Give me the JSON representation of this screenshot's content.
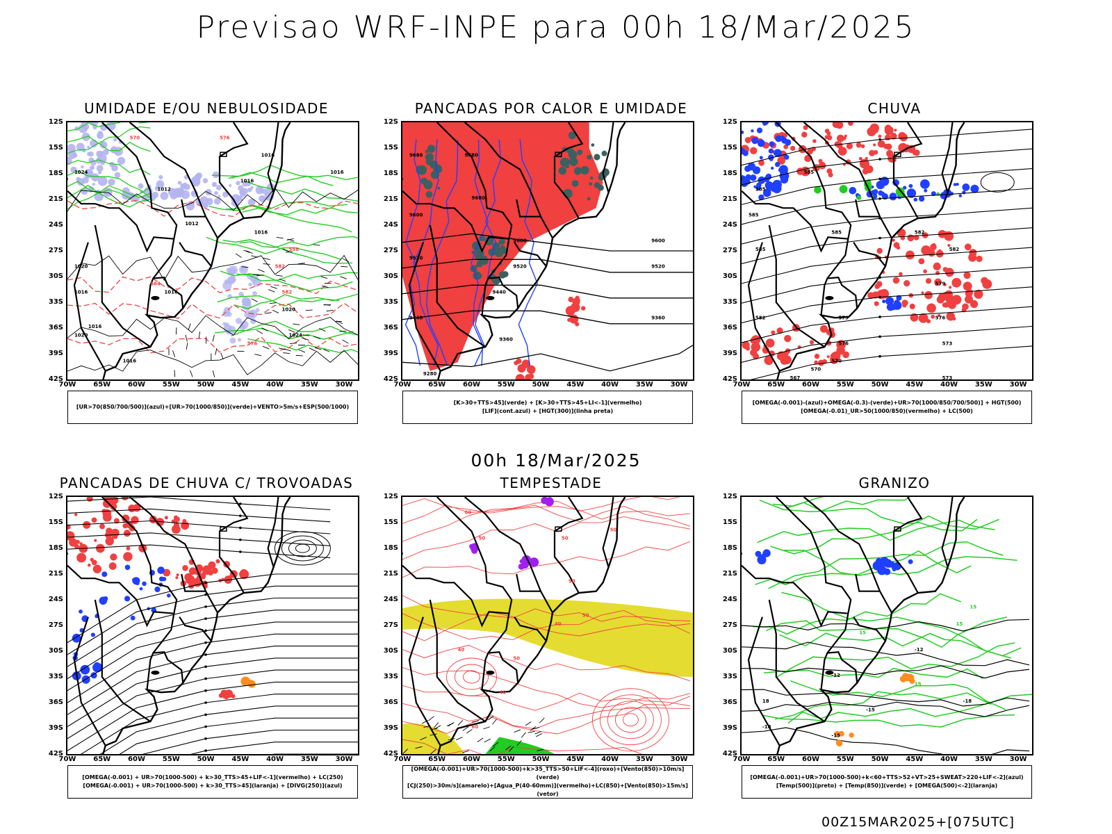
{
  "title": "Previsao WRF-INPE  para 00h 18/Mar/2025",
  "mid_title": "00h 18/Mar/2025",
  "footer": "00Z15MAR2025+[075UTC]",
  "axes": {
    "lat_labels": [
      "12S",
      "15S",
      "18S",
      "21S",
      "24S",
      "27S",
      "30S",
      "33S",
      "36S",
      "39S",
      "42S"
    ],
    "lon_labels": [
      "70W",
      "65W",
      "60W",
      "55W",
      "50W",
      "45W",
      "40W",
      "35W",
      "30W"
    ],
    "lat_range": [
      -12,
      -42
    ],
    "lon_range": [
      -70,
      -28
    ]
  },
  "colors": {
    "red": "#f04040",
    "green": "#22cc22",
    "blue": "#2040ff",
    "lavender": "#b4b4f0",
    "darkteal": "#3c6060",
    "yellow": "#e4dc30",
    "purple": "#a020f0",
    "orange": "#ff8c20"
  },
  "panels": [
    {
      "title": "UMIDADE E/OU NEBULOSIDADE",
      "legend": [
        "[UR>70(850/700/500)](azul)+[UR>70(1000/850)](verde)+VENTO>5m/s+ESP(500/1000)"
      ],
      "labels": [
        "1016",
        "1016",
        "1012",
        "1016",
        "1016",
        "1012",
        "1016",
        "1024",
        "1020",
        "1016",
        "1016",
        "1020",
        "1016",
        "1020",
        "1024",
        "570",
        "576",
        "564",
        "582",
        "582",
        "576",
        "558"
      ]
    },
    {
      "title": "PANCADAS POR CALOR E UMIDADE",
      "legend": [
        "[K>30+TTS>45](verde) + [K>30+TTS>45+LI<-1](vermelho)",
        "[LIF](cont.azul) + [HGT(300)](linha preta)"
      ],
      "labels": [
        "9680",
        "9680",
        "9600",
        "9680",
        "9600",
        "9520",
        "9520",
        "9600",
        "9520",
        "9440",
        "9440",
        "9360",
        "9360",
        "9280"
      ]
    },
    {
      "title": "CHUVA",
      "legend": [
        "[OMEGA(-0.001)-(azul)+OMEGA(-0.3)-(verde)+UR>70(1000/850/700/500)] + HGT(500)",
        "[OMEGA(-0.01)_UR>50(1000/850)(vermelho) + LC(500)"
      ],
      "labels": [
        "585",
        "585",
        "585",
        "582",
        "585",
        "582",
        "585",
        "582",
        "579",
        "576",
        "579",
        "573",
        "576",
        "573",
        "570",
        "570",
        "567"
      ]
    },
    {
      "title": "PANCADAS DE CHUVA C/ TROVOADAS",
      "legend": [
        "[OMEGA(-0.001) + UR>70(1000-500) + k>30_TTS>45+LIF<-1](vermelho) + LC(250)",
        "[OMEGA(-0.001) + UR>70(1000-500) + k>30_TTS>45](laranja) + [DIVG(250)](azul)"
      ],
      "labels": []
    },
    {
      "title": "TEMPESTADE",
      "legend": [
        "[OMEGA(-0.001)+UR>70(1000-500)+k>35_TTS>50+LIF<-4](roxo)+[Vento(850)>10m/s](verde)",
        "[CJ(250)>30m/s](amarelo)+[Agua_P(40-60mm)](vermelho)+LC(850)+[Vento(850)>15m/s](vetor)"
      ],
      "labels": [
        "60",
        "50",
        "50",
        "50",
        "40",
        "40",
        "40",
        "50",
        "60",
        "50",
        "50"
      ]
    },
    {
      "title": "GRANIZO",
      "legend": [
        "[OMEGA(-0.001)+UR>70(1000-500)+k<60+TTS>52+VT>25+SWEAT>220+LIF<-2](azul)",
        "[Temp(500)](preto) + [Temp(850)](verde) + [OMEGA(500)<-2](laranja)"
      ],
      "labels": [
        "15",
        "15",
        "-12",
        "-12",
        "-15",
        "-18",
        "-18",
        "15",
        "18",
        "-15",
        "15"
      ]
    }
  ]
}
